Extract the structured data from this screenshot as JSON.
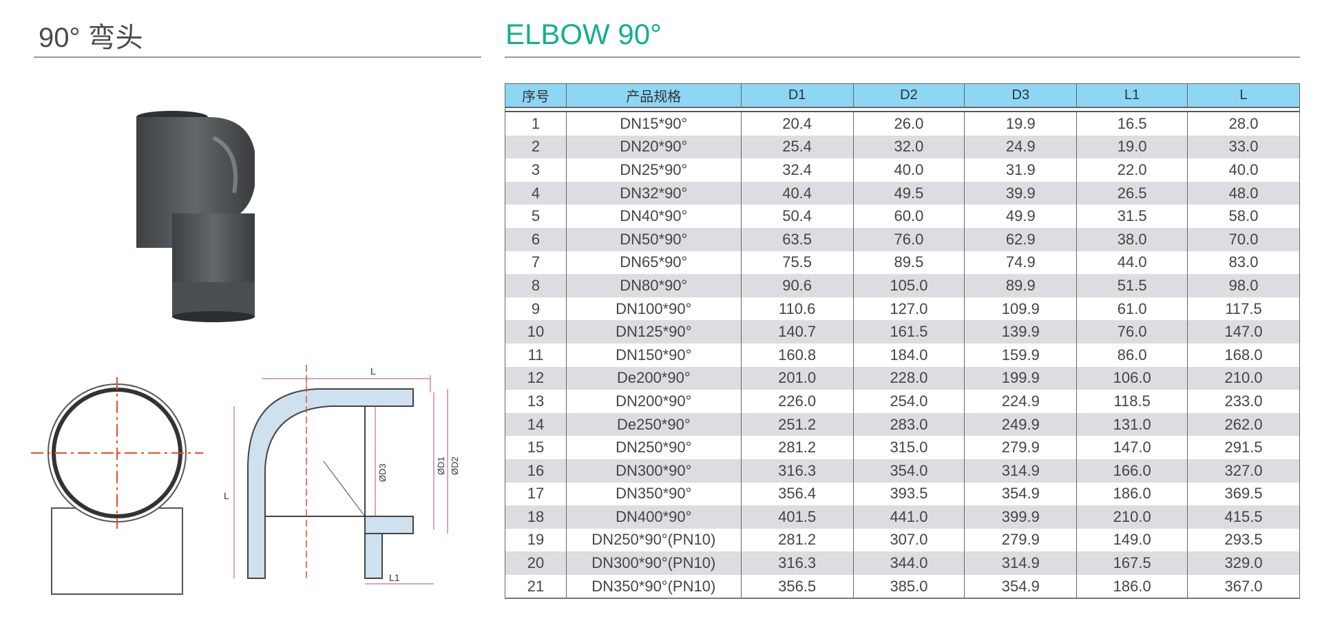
{
  "header": {
    "title_cn": "90° 弯头",
    "title_en": "ELBOW 90°"
  },
  "colors": {
    "title_en": "#12b08f",
    "table_header_bg": "#8dd6f4",
    "row_alt_bg": "#dcdde0"
  },
  "drawing_labels": {
    "L_top": "L",
    "L_side": "L",
    "L1": "L1",
    "D1": "ØD1",
    "D2": "ØD2",
    "D3": "ØD3"
  },
  "table": {
    "columns": [
      "序号",
      "产品规格",
      "D1",
      "D2",
      "D3",
      "L1",
      "L"
    ],
    "rows": [
      [
        "1",
        "DN15*90°",
        "20.4",
        "26.0",
        "19.9",
        "16.5",
        "28.0"
      ],
      [
        "2",
        "DN20*90°",
        "25.4",
        "32.0",
        "24.9",
        "19.0",
        "33.0"
      ],
      [
        "3",
        "DN25*90°",
        "32.4",
        "40.0",
        "31.9",
        "22.0",
        "40.0"
      ],
      [
        "4",
        "DN32*90°",
        "40.4",
        "49.5",
        "39.9",
        "26.5",
        "48.0"
      ],
      [
        "5",
        "DN40*90°",
        "50.4",
        "60.0",
        "49.9",
        "31.5",
        "58.0"
      ],
      [
        "6",
        "DN50*90°",
        "63.5",
        "76.0",
        "62.9",
        "38.0",
        "70.0"
      ],
      [
        "7",
        "DN65*90°",
        "75.5",
        "89.5",
        "74.9",
        "44.0",
        "83.0"
      ],
      [
        "8",
        "DN80*90°",
        "90.6",
        "105.0",
        "89.9",
        "51.5",
        "98.0"
      ],
      [
        "9",
        "DN100*90°",
        "110.6",
        "127.0",
        "109.9",
        "61.0",
        "117.5"
      ],
      [
        "10",
        "DN125*90°",
        "140.7",
        "161.5",
        "139.9",
        "76.0",
        "147.0"
      ],
      [
        "11",
        "DN150*90°",
        "160.8",
        "184.0",
        "159.9",
        "86.0",
        "168.0"
      ],
      [
        "12",
        "De200*90°",
        "201.0",
        "228.0",
        "199.9",
        "106.0",
        "210.0"
      ],
      [
        "13",
        "DN200*90°",
        "226.0",
        "254.0",
        "224.9",
        "118.5",
        "233.0"
      ],
      [
        "14",
        "De250*90°",
        "251.2",
        "283.0",
        "249.9",
        "131.0",
        "262.0"
      ],
      [
        "15",
        "DN250*90°",
        "281.2",
        "315.0",
        "279.9",
        "147.0",
        "291.5"
      ],
      [
        "16",
        "DN300*90°",
        "316.3",
        "354.0",
        "314.9",
        "166.0",
        "327.0"
      ],
      [
        "17",
        "DN350*90°",
        "356.4",
        "393.5",
        "354.9",
        "186.0",
        "369.5"
      ],
      [
        "18",
        "DN400*90°",
        "401.5",
        "441.0",
        "399.9",
        "210.0",
        "415.5"
      ],
      [
        "19",
        "DN250*90°(PN10)",
        "281.2",
        "307.0",
        "279.9",
        "149.0",
        "293.5"
      ],
      [
        "20",
        "DN300*90°(PN10)",
        "316.3",
        "344.0",
        "314.9",
        "167.5",
        "329.0"
      ],
      [
        "21",
        "DN350*90°(PN10)",
        "356.5",
        "385.0",
        "354.9",
        "186.0",
        "367.0"
      ]
    ]
  }
}
